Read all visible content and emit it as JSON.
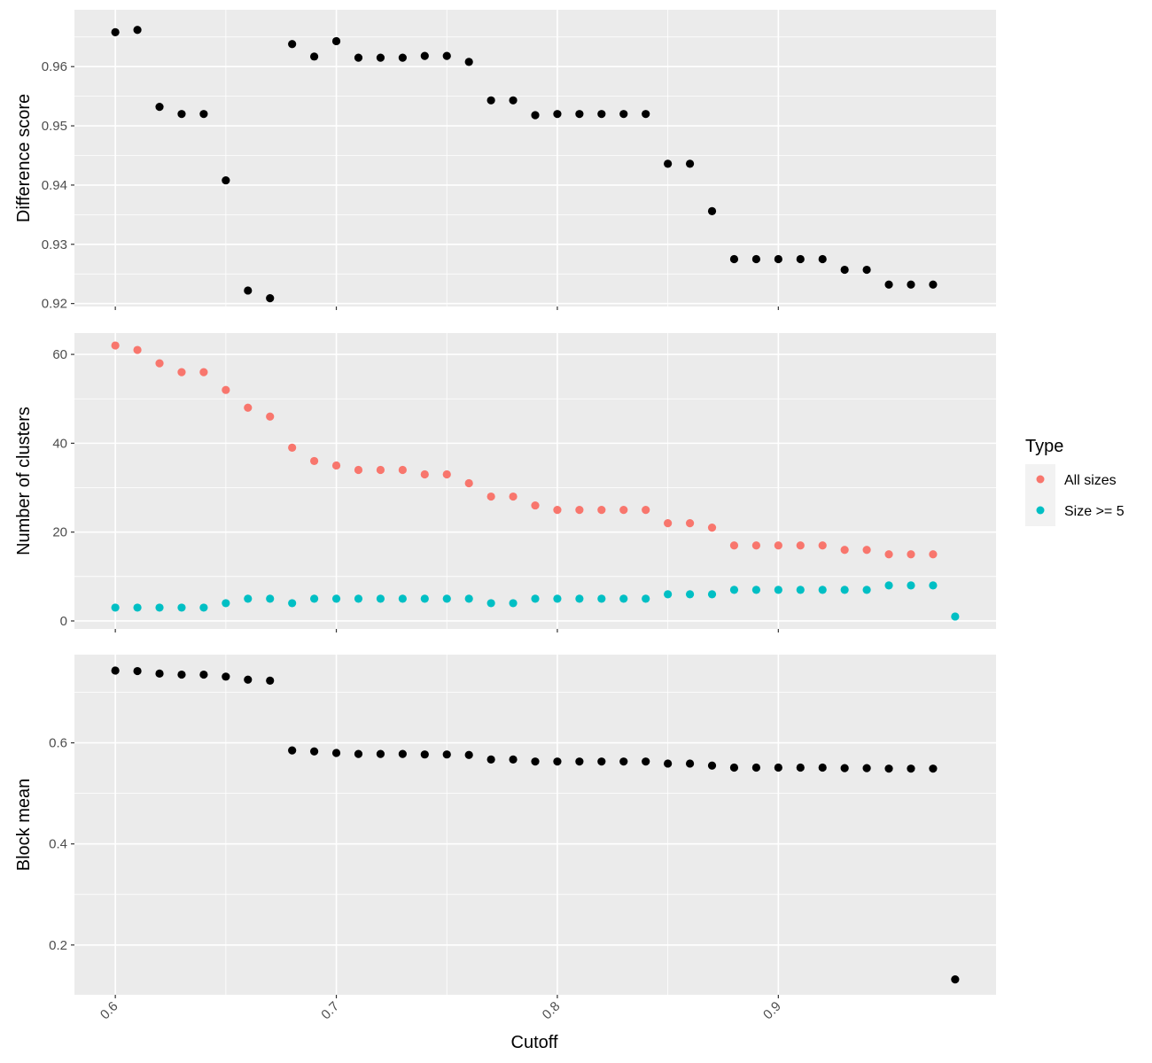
{
  "chart_data": {
    "type": "scatter",
    "x_label": "Cutoff",
    "x_ticks": [
      "0.6",
      "0.7",
      "0.8",
      "0.9"
    ],
    "x_range": [
      0.5815,
      0.9985
    ],
    "x": [
      0.6,
      0.61,
      0.62,
      0.63,
      0.64,
      0.65,
      0.66,
      0.67,
      0.68,
      0.69,
      0.7,
      0.71,
      0.72,
      0.73,
      0.74,
      0.75,
      0.76,
      0.77,
      0.78,
      0.79,
      0.8,
      0.81,
      0.82,
      0.83,
      0.84,
      0.85,
      0.86,
      0.87,
      0.88,
      0.89,
      0.9,
      0.91,
      0.92,
      0.93,
      0.94,
      0.95,
      0.96,
      0.97,
      0.98
    ],
    "facets": [
      {
        "ylabel": "Difference score",
        "y_range": [
          0.9195,
          0.9696
        ],
        "y_ticks": [
          "0.92",
          "0.93",
          "0.94",
          "0.95",
          "0.96"
        ],
        "series": [
          {
            "color": "#000000",
            "values": [
              0.9658,
              0.9662,
              0.9532,
              0.952,
              0.952,
              0.9408,
              0.9222,
              0.9209,
              0.9638,
              0.9617,
              0.9643,
              0.9615,
              0.9615,
              0.9615,
              0.9618,
              0.9618,
              0.9608,
              0.9543,
              0.9543,
              0.9518,
              0.952,
              0.952,
              0.952,
              0.952,
              0.952,
              0.9436,
              0.9436,
              0.9356,
              0.9275,
              0.9275,
              0.9275,
              0.9275,
              0.9275,
              0.9257,
              0.9257,
              0.9232,
              0.9232,
              0.9232,
              null
            ]
          }
        ]
      },
      {
        "ylabel": "Number of clusters",
        "y_range": [
          -1.8,
          64.8
        ],
        "y_ticks": [
          "0",
          "20",
          "40",
          "60"
        ],
        "series": [
          {
            "name": "All sizes",
            "color": "#F8766D",
            "values": [
              62,
              61,
              58,
              56,
              56,
              52,
              48,
              46,
              39,
              36,
              35,
              34,
              34,
              34,
              33,
              33,
              31,
              28,
              28,
              26,
              25,
              25,
              25,
              25,
              25,
              22,
              22,
              21,
              17,
              17,
              17,
              17,
              17,
              16,
              16,
              15,
              15,
              15,
              null
            ]
          },
          {
            "name": "Size >= 5",
            "color": "#00BFC4",
            "values": [
              3,
              3,
              3,
              3,
              3,
              4,
              5,
              5,
              4,
              5,
              5,
              5,
              5,
              5,
              5,
              5,
              5,
              4,
              4,
              5,
              5,
              5,
              5,
              5,
              5,
              6,
              6,
              6,
              7,
              7,
              7,
              7,
              7,
              7,
              7,
              8,
              8,
              8,
              1
            ]
          }
        ]
      },
      {
        "ylabel": "Block mean",
        "y_range": [
          0.1015,
          0.7745
        ],
        "y_ticks": [
          "0.2",
          "0.4",
          "0.6"
        ],
        "series": [
          {
            "color": "#000000",
            "values": [
              0.743,
              0.742,
              0.737,
              0.735,
              0.735,
              0.731,
              0.725,
              0.723,
              0.585,
              0.583,
              0.58,
              0.578,
              0.578,
              0.578,
              0.577,
              0.577,
              0.576,
              0.567,
              0.567,
              0.563,
              0.563,
              0.563,
              0.563,
              0.563,
              0.563,
              0.559,
              0.559,
              0.555,
              0.551,
              0.551,
              0.551,
              0.551,
              0.551,
              0.55,
              0.55,
              0.549,
              0.549,
              0.549,
              0.132
            ]
          }
        ]
      }
    ],
    "legend": {
      "title": "Type",
      "position": "right",
      "items": [
        {
          "label": "All sizes",
          "color": "#F8766D"
        },
        {
          "label": "Size >= 5",
          "color": "#00BFC4"
        }
      ]
    },
    "grid": true,
    "background": "#EBEBEB"
  }
}
